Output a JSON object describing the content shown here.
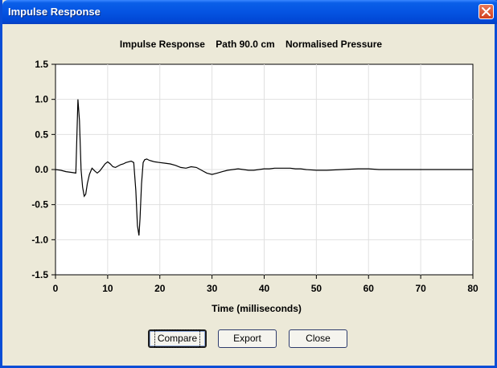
{
  "window": {
    "title": "Impulse Response"
  },
  "chart_data": {
    "type": "line",
    "title": "Impulse Response    Path 90.0 cm    Normalised Pressure",
    "xlabel": "Time (milliseconds)",
    "ylabel": "",
    "xlim": [
      0,
      80
    ],
    "ylim": [
      -1.5,
      1.5
    ],
    "xticks": [
      0,
      10,
      20,
      30,
      40,
      50,
      60,
      70,
      80
    ],
    "yticks": [
      1.5,
      1.0,
      0.5,
      0.0,
      -0.5,
      -1.0,
      -1.5
    ],
    "ytick_labels": [
      "1.5",
      "1.0",
      "0.5",
      "0.0",
      "-0.5",
      "-1.0",
      "-1.5"
    ],
    "grid": true,
    "line_color": "#000000",
    "grid_color": "#e0e0e0",
    "series": [
      {
        "x": [
          0,
          1,
          2,
          3,
          3.9,
          4.3,
          4.6,
          4.9,
          5.2,
          5.5,
          5.8,
          6.1,
          6.5,
          7,
          7.5,
          8,
          8.5,
          9,
          9.5,
          10,
          10.5,
          11,
          11.5,
          12,
          12.5,
          13,
          13.5,
          14,
          14.5,
          15,
          15.4,
          15.7,
          16,
          16.2,
          16.5,
          16.8,
          17.1,
          17.5,
          18,
          18.5,
          19,
          20,
          21,
          22,
          23,
          24,
          25,
          26,
          27,
          28,
          29,
          30,
          31,
          32,
          33,
          34,
          35,
          36,
          37,
          38,
          39,
          40,
          41,
          42,
          43,
          44,
          45,
          46,
          47,
          48,
          50,
          52,
          55,
          58,
          60,
          62,
          65,
          70,
          75,
          80
        ],
        "y": [
          0.0,
          -0.01,
          -0.03,
          -0.04,
          -0.05,
          1.0,
          0.7,
          0.0,
          -0.25,
          -0.38,
          -0.35,
          -0.2,
          -0.07,
          0.02,
          -0.02,
          -0.05,
          -0.02,
          0.03,
          0.08,
          0.11,
          0.08,
          0.04,
          0.03,
          0.05,
          0.07,
          0.08,
          0.1,
          0.11,
          0.12,
          0.1,
          -0.3,
          -0.8,
          -0.94,
          -0.7,
          -0.2,
          0.1,
          0.14,
          0.15,
          0.13,
          0.12,
          0.11,
          0.1,
          0.09,
          0.08,
          0.06,
          0.03,
          0.02,
          0.04,
          0.03,
          -0.01,
          -0.05,
          -0.07,
          -0.05,
          -0.03,
          -0.01,
          0.0,
          0.01,
          0.0,
          -0.01,
          -0.01,
          0.0,
          0.01,
          0.01,
          0.02,
          0.02,
          0.02,
          0.02,
          0.01,
          0.01,
          0.0,
          -0.01,
          -0.01,
          0.0,
          0.01,
          0.01,
          0.0,
          0.0,
          0.0,
          0.0,
          0.0
        ]
      }
    ]
  },
  "buttons": {
    "compare": "Compare",
    "export": "Export",
    "close": "Close"
  }
}
